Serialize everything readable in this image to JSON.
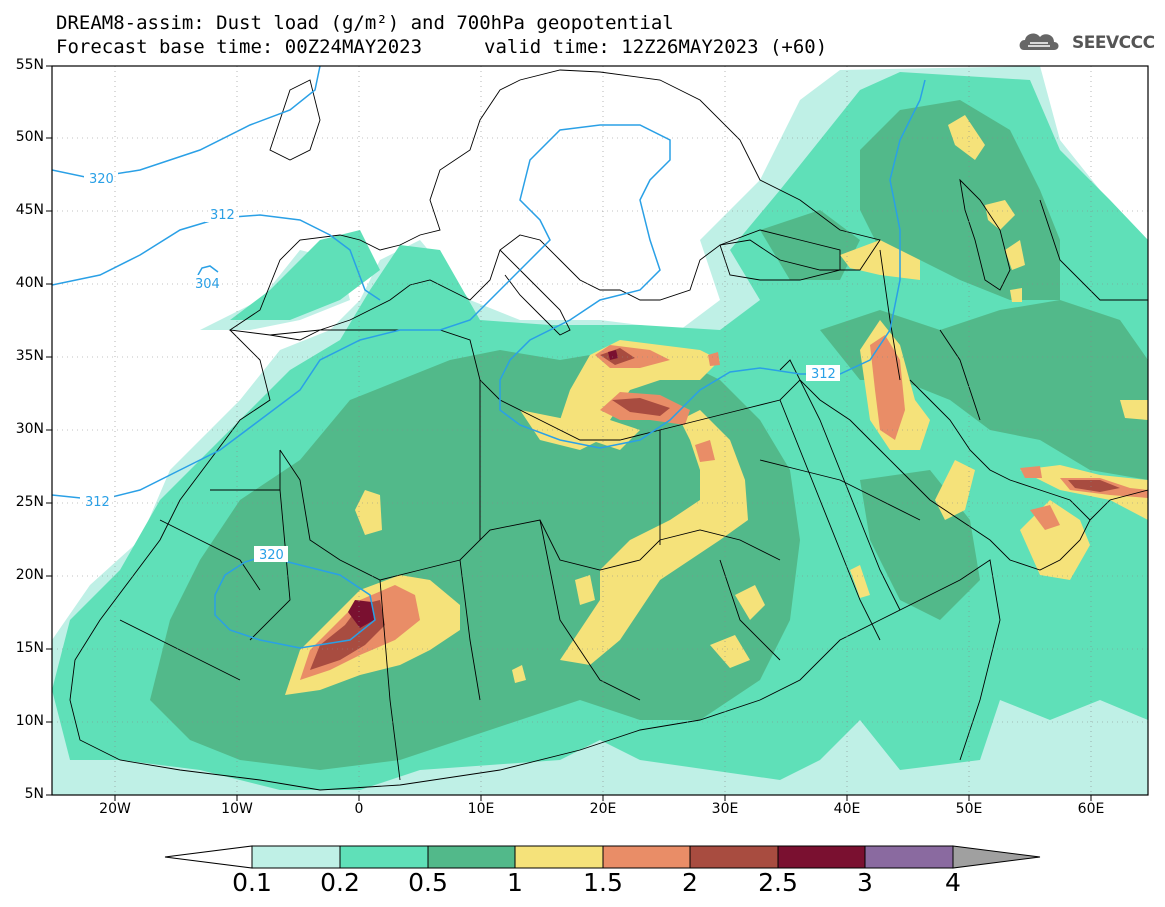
{
  "header": {
    "title_line1": "DREAM8-assim: Dust load (g/m²) and 700hPa geopotential",
    "base_time": "Forecast base time: 00Z24MAY2023",
    "valid_time": "valid time: 12Z26MAY2023 (+60)",
    "logo_text": "SEEVCCC",
    "logo_icon": "cloud-logo-icon"
  },
  "axes": {
    "lat_labels": [
      "55N",
      "50N",
      "45N",
      "40N",
      "35N",
      "30N",
      "25N",
      "20N",
      "15N",
      "10N",
      "5N"
    ],
    "lon_labels": [
      "20W",
      "10W",
      "0",
      "10E",
      "20E",
      "30E",
      "40E",
      "50E",
      "60E"
    ]
  },
  "contours": {
    "labels": [
      "320",
      "312",
      "304",
      "312",
      "320",
      "312"
    ]
  },
  "colorbar": {
    "labels": [
      "0.1",
      "0.2",
      "0.5",
      "1",
      "1.5",
      "2",
      "2.5",
      "3",
      "4"
    ],
    "colors": [
      "#bff0e6",
      "#5fe0b8",
      "#52b98a",
      "#f5e27a",
      "#e98d67",
      "#a84c40",
      "#7a1030",
      "#8a6aa0",
      "#a0a0a0"
    ]
  },
  "map_colors": {
    "dust_01": "#bff0e6",
    "dust_02": "#5fe0b8",
    "dust_05": "#52b98a",
    "dust_1": "#f5e27a",
    "dust_15": "#e98d67",
    "dust_2": "#a84c40",
    "dust_25": "#7a1030",
    "geopotential_line": "#2aa0e6"
  }
}
